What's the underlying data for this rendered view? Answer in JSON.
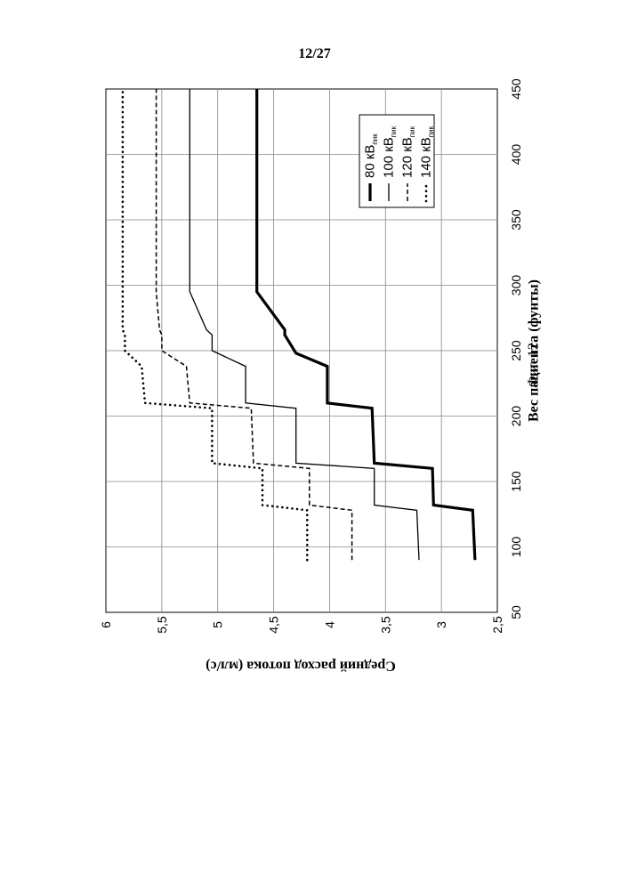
{
  "page_number": "12/27",
  "figure_caption": "Фиг. 12",
  "chart_data": {
    "type": "line",
    "title": "",
    "xlabel": "Вес пациента (фунты)",
    "ylabel": "Средний расход потока (мл/с)",
    "xlim": [
      50,
      450
    ],
    "ylim": [
      2.5,
      6
    ],
    "xticks": [
      50,
      100,
      150,
      200,
      250,
      300,
      350,
      400,
      450
    ],
    "xtick_labels": [
      "50",
      "100",
      "150",
      "200",
      "250",
      "300",
      "350",
      "400",
      "450"
    ],
    "yticks": [
      2.5,
      3,
      3.5,
      4,
      4.5,
      5,
      5.5,
      6
    ],
    "ytick_labels": [
      "2,5",
      "3",
      "3,5",
      "4",
      "4,5",
      "5",
      "5,5",
      "6"
    ],
    "grid": true,
    "legend_position": "top-right",
    "series": [
      {
        "name": "80 кВ",
        "name_sub": "пик",
        "style": "thick",
        "x": [
          90,
          128,
          132,
          160,
          164,
          206,
          210,
          238,
          248,
          262,
          266,
          295,
          450
        ],
        "y": [
          2.7,
          2.72,
          3.07,
          3.08,
          3.6,
          3.62,
          4.02,
          4.02,
          4.3,
          4.4,
          4.4,
          4.65,
          4.65
        ]
      },
      {
        "name": "100 кВ",
        "name_sub": "пик",
        "style": "thin",
        "x": [
          90,
          128,
          132,
          160,
          164,
          206,
          210,
          238,
          250,
          262,
          266,
          295,
          450
        ],
        "y": [
          3.2,
          3.22,
          3.6,
          3.6,
          4.3,
          4.3,
          4.75,
          4.75,
          5.05,
          5.05,
          5.1,
          5.25,
          5.25
        ]
      },
      {
        "name": "120 кВ",
        "name_sub": "пик",
        "style": "dashed",
        "x": [
          90,
          128,
          132,
          160,
          164,
          206,
          210,
          238,
          250,
          262,
          266,
          295,
          450
        ],
        "y": [
          3.8,
          3.8,
          4.18,
          4.18,
          4.68,
          4.7,
          5.25,
          5.28,
          5.5,
          5.5,
          5.52,
          5.55,
          5.55
        ]
      },
      {
        "name": "140 кВ",
        "name_sub": "пик",
        "style": "dotted",
        "x": [
          90,
          128,
          132,
          160,
          164,
          206,
          210,
          238,
          250,
          262,
          266,
          295,
          450
        ],
        "y": [
          4.2,
          4.2,
          4.6,
          4.6,
          5.05,
          5.05,
          5.65,
          5.68,
          5.83,
          5.83,
          5.85,
          5.85,
          5.85
        ]
      }
    ]
  }
}
